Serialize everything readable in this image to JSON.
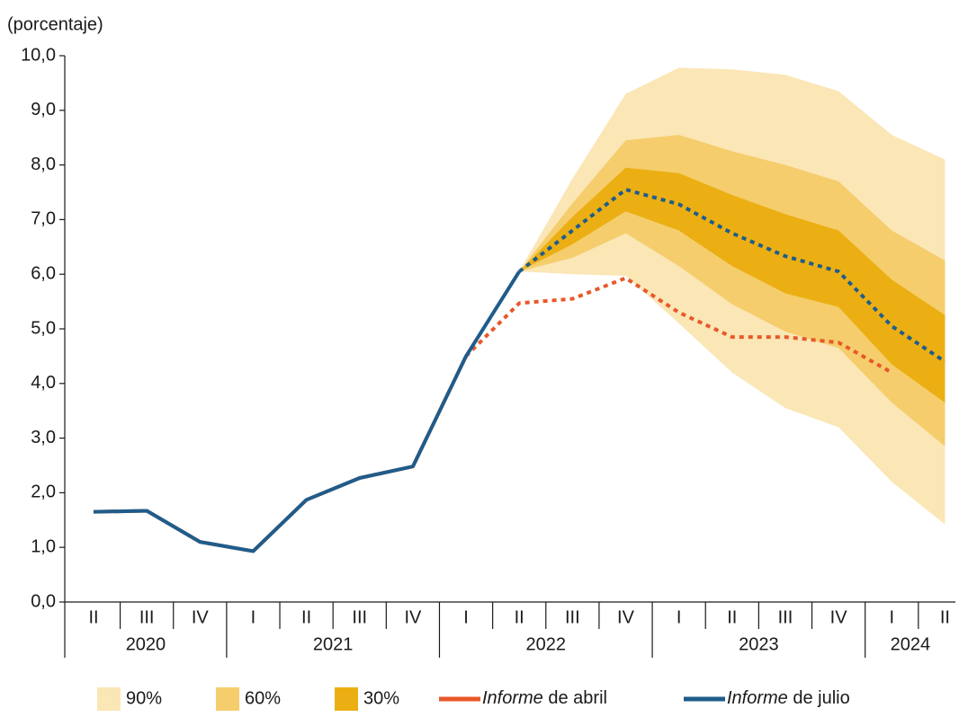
{
  "chart_data": {
    "type": "fan",
    "y_label": "(porcentaje)",
    "categories": [
      "II",
      "III",
      "IV",
      "I",
      "II",
      "III",
      "IV",
      "I",
      "II",
      "III",
      "IV",
      "I",
      "II",
      "III",
      "IV",
      "I",
      "II"
    ],
    "years": [
      "2020",
      "2020",
      "2020",
      "2021",
      "2021",
      "2021",
      "2021",
      "2022",
      "2022",
      "2022",
      "2022",
      "2023",
      "2023",
      "2023",
      "2023",
      "2024",
      "2024"
    ],
    "ylim": [
      0,
      10
    ],
    "yticks": [
      {
        "value": 0,
        "label": "0,0"
      },
      {
        "value": 1,
        "label": "1,0"
      },
      {
        "value": 2,
        "label": "2,0"
      },
      {
        "value": 3,
        "label": "3,0"
      },
      {
        "value": 4,
        "label": "4,0"
      },
      {
        "value": 5,
        "label": "5,0"
      },
      {
        "value": 6,
        "label": "6,0"
      },
      {
        "value": 7,
        "label": "7,0"
      },
      {
        "value": 8,
        "label": "8,0"
      },
      {
        "value": 9,
        "label": "9,0"
      },
      {
        "value": 10,
        "label": "10,0"
      }
    ],
    "bands": [
      {
        "name": "90%",
        "color": "#fbe6b6",
        "lower": [
          null,
          null,
          null,
          null,
          null,
          null,
          null,
          null,
          6.05,
          6.0,
          5.97,
          5.1,
          4.2,
          3.55,
          3.2,
          2.2,
          1.42
        ],
        "upper": [
          null,
          null,
          null,
          null,
          null,
          null,
          null,
          null,
          6.05,
          7.75,
          9.3,
          9.78,
          9.75,
          9.65,
          9.35,
          8.55,
          8.1
        ]
      },
      {
        "name": "60%",
        "color": "#f5cd6c",
        "lower": [
          null,
          null,
          null,
          null,
          null,
          null,
          null,
          null,
          6.05,
          6.3,
          6.75,
          6.15,
          5.45,
          4.95,
          4.65,
          3.65,
          2.85
        ],
        "upper": [
          null,
          null,
          null,
          null,
          null,
          null,
          null,
          null,
          6.05,
          7.3,
          8.45,
          8.55,
          8.25,
          8.0,
          7.7,
          6.8,
          6.25
        ]
      },
      {
        "name": "30%",
        "color": "#ebaf13",
        "lower": [
          null,
          null,
          null,
          null,
          null,
          null,
          null,
          null,
          6.05,
          6.55,
          7.15,
          6.8,
          6.15,
          5.65,
          5.4,
          4.35,
          3.65
        ],
        "upper": [
          null,
          null,
          null,
          null,
          null,
          null,
          null,
          null,
          6.05,
          7.05,
          7.95,
          7.85,
          7.45,
          7.1,
          6.8,
          5.9,
          5.25
        ]
      }
    ],
    "series": [
      {
        "name": "Informe de abril",
        "color": "#e8582a",
        "dashed_from": 7,
        "values": [
          1.65,
          1.67,
          1.1,
          0.93,
          1.87,
          2.27,
          2.48,
          4.5,
          5.47,
          5.55,
          5.93,
          5.3,
          4.85,
          4.85,
          4.75,
          4.2,
          null
        ]
      },
      {
        "name": "Informe de julio",
        "color": "#1f5c8b",
        "dashed_from": 8,
        "values": [
          1.65,
          1.67,
          1.1,
          0.93,
          1.87,
          2.27,
          2.48,
          4.5,
          6.05,
          6.8,
          7.55,
          7.28,
          6.75,
          6.33,
          6.05,
          5.05,
          4.4
        ]
      }
    ]
  }
}
